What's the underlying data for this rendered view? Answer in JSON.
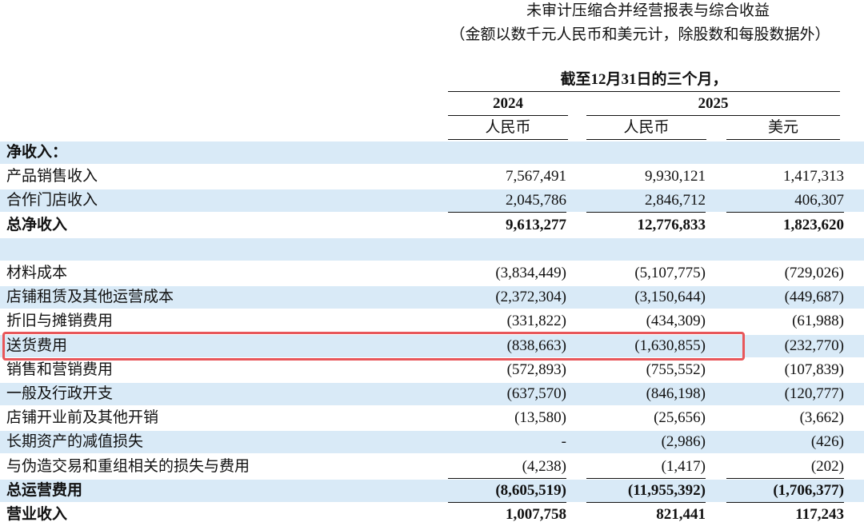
{
  "header": {
    "title": "未审计压缩合并经营报表与综合收益",
    "subtitle": "（金额以数千元人民币和美元计，除股数和每股数据外）"
  },
  "table": {
    "period": "截至12月31日的三个月，",
    "years": [
      "2024",
      "2025"
    ],
    "currencies": [
      "人民币",
      "人民币",
      "美元"
    ],
    "sections": [
      {
        "rows": [
          {
            "label": "净收入：",
            "bold": true
          },
          {
            "label": "产品销售收入",
            "values": [
              "7,567,491",
              "9,930,121",
              "1,417,313"
            ]
          },
          {
            "label": "合作门店收入",
            "values": [
              "2,045,786",
              "2,846,712",
              "406,307"
            ]
          },
          {
            "label": "总净收入",
            "values": [
              "9,613,277",
              "12,776,833",
              "1,823,620"
            ],
            "bold": true
          }
        ]
      },
      {
        "rows": [
          {
            "label": "材料成本",
            "values": [
              "(3,834,449)",
              "(5,107,775)",
              "(729,026)"
            ]
          },
          {
            "label": "店铺租赁及其他运营成本",
            "values": [
              "(2,372,304)",
              "(3,150,644)",
              "(449,687)"
            ]
          },
          {
            "label": "折旧与摊销费用",
            "values": [
              "(331,822)",
              "(434,309)",
              "(61,988)"
            ]
          },
          {
            "label": "送货费用",
            "values": [
              "(838,663)",
              "(1,630,855)",
              "(232,770)"
            ],
            "highlight": true
          },
          {
            "label": "销售和营销费用",
            "values": [
              "(572,893)",
              "(755,552)",
              "(107,839)"
            ]
          },
          {
            "label": "一般及行政开支",
            "values": [
              "(637,570)",
              "(846,198)",
              "(120,777)"
            ]
          },
          {
            "label": "店铺开业前及其他开销",
            "values": [
              "(13,580)",
              "(25,656)",
              "(3,662)"
            ]
          },
          {
            "label": "长期资产的减值损失",
            "values": [
              "-",
              "(2,986)",
              "(426)"
            ]
          },
          {
            "label": "与伪造交易和重组相关的损失与费用",
            "values": [
              "(4,238)",
              "(1,417)",
              "(202)"
            ]
          },
          {
            "label": "总运营费用",
            "values": [
              "(8,605,519)",
              "(11,955,392)",
              "(1,706,377)"
            ],
            "bold": true
          },
          {
            "label": "营业收入",
            "values": [
              "1,007,758",
              "821,441",
              "117,243"
            ],
            "bold": true
          }
        ]
      }
    ]
  }
}
